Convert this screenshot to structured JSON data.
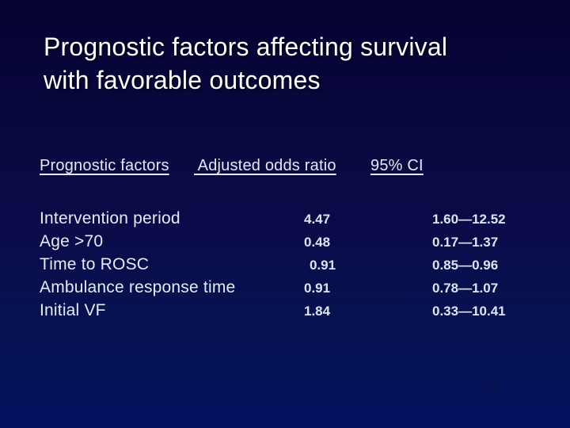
{
  "slide": {
    "title_line1": "Prognostic factors affecting survival",
    "title_line2": "with favorable outcomes",
    "page_number": "21"
  },
  "table": {
    "headers": {
      "factor": "Prognostic factors",
      "odds": " Adjusted odds ratio",
      "ci": "95% CI"
    },
    "rows": [
      {
        "factor": "Intervention period",
        "odds": "4.47",
        "ci": "1.60—12.52"
      },
      {
        "factor": "Age >70",
        "odds": "0.48",
        "ci": "0.17—1.37"
      },
      {
        "factor": "Time to ROSC",
        "odds": "0.91",
        "ci": "0.85—0.96"
      },
      {
        "factor": "Ambulance response time",
        "odds": "0.91",
        "ci": "0.78—1.07"
      },
      {
        "factor": "Initial VF",
        "odds": "1.84",
        "ci": "0.33—10.41"
      }
    ]
  },
  "colors": {
    "background_top": "#050331",
    "background_bottom": "#02125e",
    "title_text": "#ffffff",
    "table_text": "#e0eaf6",
    "value_text": "#d9e6f3",
    "page_number_text": "#10103c"
  }
}
